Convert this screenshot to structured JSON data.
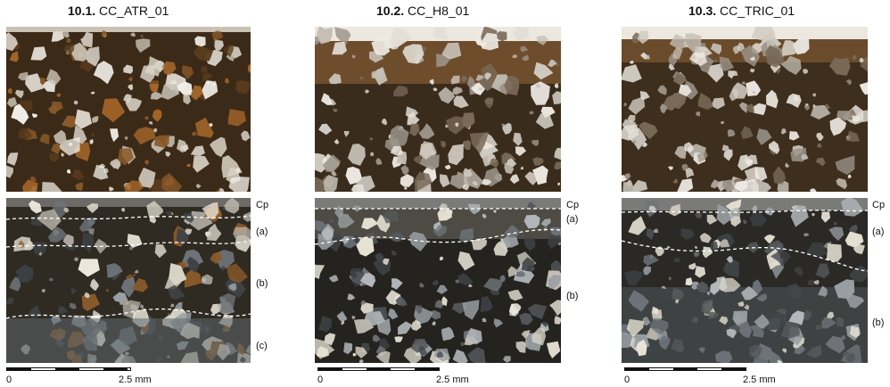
{
  "panels": [
    {
      "number": "10.1.",
      "code": "CC_ATR_01",
      "zones": [
        "Cp",
        "(a)",
        "(b)",
        "(c)"
      ],
      "scale": {
        "start": "0",
        "end": "2.5 mm"
      }
    },
    {
      "number": "10.2.",
      "code": "CC_H8_01",
      "zones": [
        "Cp",
        "(a)",
        "(b)"
      ],
      "scale": {
        "start": "0",
        "end": "2.5 mm"
      }
    },
    {
      "number": "10.3.",
      "code": "CC_TRIC_01",
      "zones": [
        "Cp",
        "(a)",
        "(b)"
      ],
      "scale": {
        "start": "0",
        "end": "2.5 mm"
      }
    }
  ],
  "colors": {
    "ppl_matrix_dark": "#3b2a17",
    "ppl_matrix_brown": "#6b4a26",
    "ppl_grain": "#e6e2da",
    "xpl_matrix": "#2c2b28",
    "xpl_grain": "#9aa0a4",
    "boundary": "#ffffff"
  }
}
